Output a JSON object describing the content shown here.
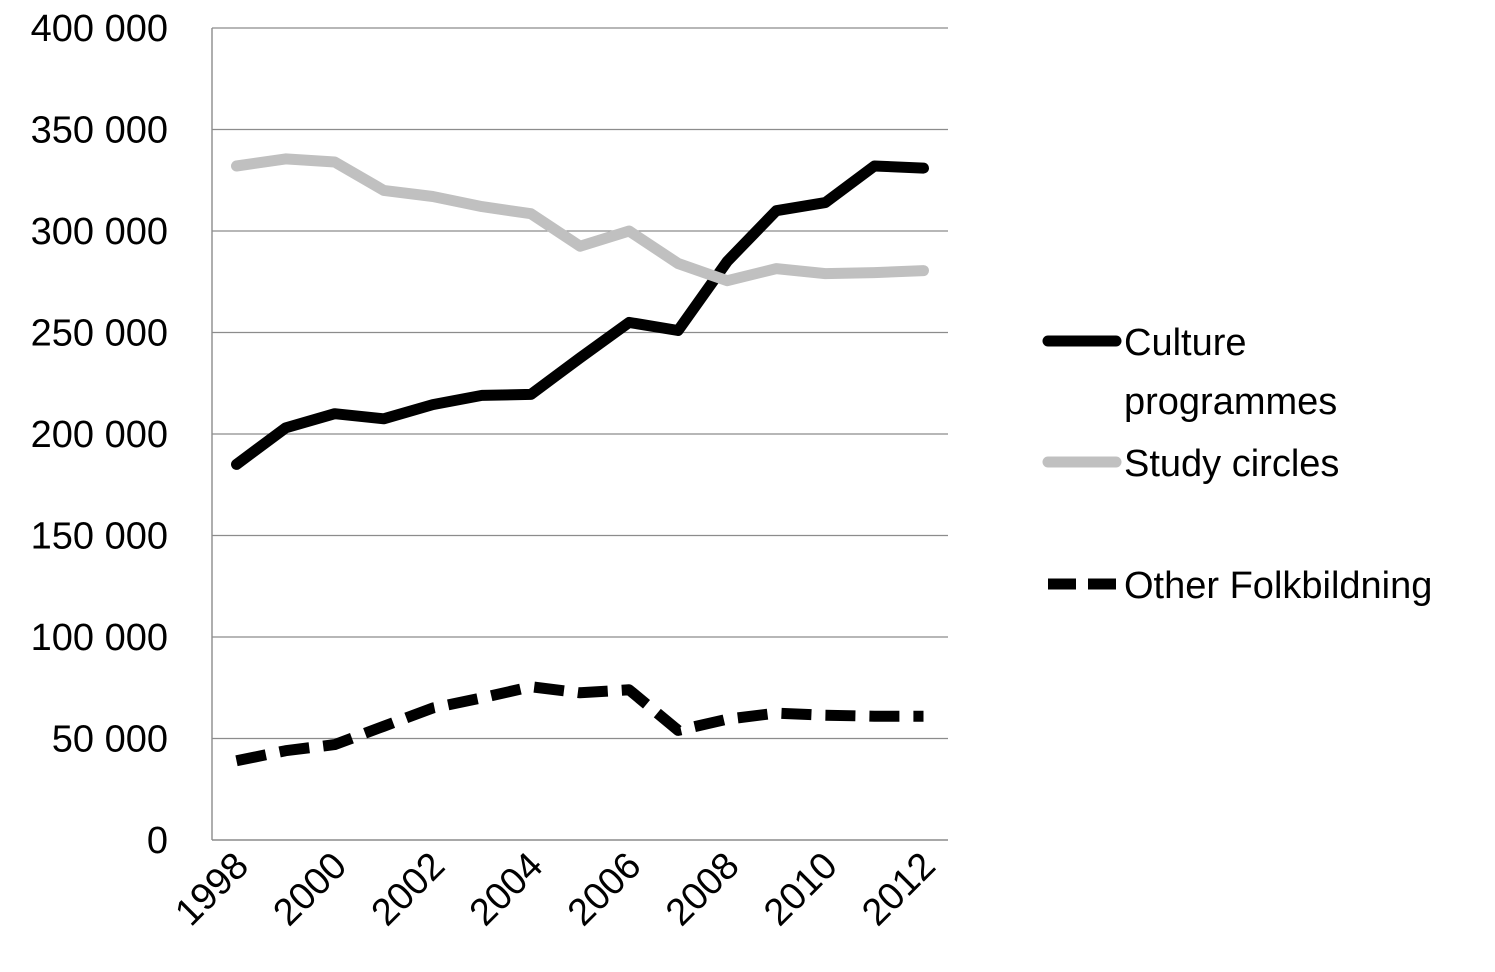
{
  "chart_data": {
    "type": "line",
    "title": "",
    "xlabel": "",
    "ylabel": "",
    "x": [
      1998,
      1999,
      2000,
      2001,
      2002,
      2003,
      2004,
      2005,
      2006,
      2007,
      2008,
      2009,
      2010,
      2011,
      2012
    ],
    "x_tick_labels": [
      "1998",
      "2000",
      "2002",
      "2004",
      "2006",
      "2008",
      "2010",
      "2012"
    ],
    "x_tick_values": [
      1998,
      2000,
      2002,
      2004,
      2006,
      2008,
      2010,
      2012
    ],
    "y_ticks": [
      0,
      50000,
      100000,
      150000,
      200000,
      250000,
      300000,
      350000,
      400000
    ],
    "y_tick_labels": [
      "0",
      "50 000",
      "100 000",
      "150 000",
      "200 000",
      "250 000",
      "300 000",
      "350 000",
      "400 000"
    ],
    "xlim": [
      1997.5,
      2012.5
    ],
    "ylim": [
      0,
      400000
    ],
    "grid": "horizontal",
    "legend_position": "right",
    "series": [
      {
        "name": "Culture programmes",
        "legend_lines": [
          "Culture",
          "programmes"
        ],
        "color": "#000000",
        "dash": "solid",
        "values": [
          185000,
          203000,
          210000,
          207500,
          214500,
          219000,
          219500,
          237500,
          255000,
          251000,
          285000,
          310000,
          314000,
          332000,
          331000
        ]
      },
      {
        "name": "Study circles",
        "legend_lines": [
          "Study circles"
        ],
        "color": "#c0c0c0",
        "dash": "solid",
        "values": [
          332000,
          335500,
          334000,
          320000,
          317000,
          312000,
          308500,
          292500,
          300000,
          284000,
          275500,
          281500,
          279000,
          279500,
          280500
        ]
      },
      {
        "name": "Other Folkbildning",
        "legend_lines": [
          "Other Folkbildning"
        ],
        "color": "#000000",
        "dash": "dashed",
        "values": [
          39000,
          44000,
          47000,
          56000,
          65000,
          70000,
          75500,
          72500,
          74000,
          54000,
          59500,
          62500,
          61500,
          61000,
          61000
        ]
      }
    ]
  }
}
